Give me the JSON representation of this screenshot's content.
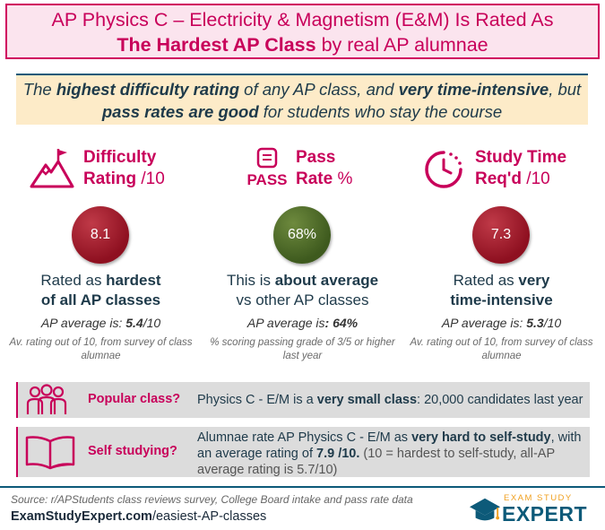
{
  "title": {
    "part1": "AP Physics C – Electricity & Magnetism (E&M) Is Rated As",
    "part2_bold": "The Hardest AP Class",
    "part2_rest": " by real AP alumnae"
  },
  "intro": {
    "t1": "The ",
    "b1": "highest difficulty rating",
    "t2": " of any AP class, and ",
    "b2": "very time-intensive",
    "t3": ", but ",
    "b3": "pass rates are good",
    "t4": " for students who stay the course"
  },
  "columns": [
    {
      "title_bold": "Difficulty",
      "title_line2_bold": "Rating",
      "title_line2_rest": " /10",
      "value": "8.1",
      "desc_pre": "Rated as ",
      "desc_bold": "hardest",
      "desc_line2_bold": "of all AP classes",
      "avg_pre": "AP average is: ",
      "avg_bold": "5.4",
      "avg_post": "/10",
      "note": "Av. rating out of 10, from survey of class alumnae"
    },
    {
      "icon_text": "PASS",
      "title_bold": "Pass",
      "title_line2_bold": "Rate",
      "title_line2_rest": " %",
      "value": "68%",
      "desc_pre": "This is ",
      "desc_bold": "about average",
      "desc_line2": "vs other AP classes",
      "avg_pre": "AP average is",
      "avg_bold": ": 64%",
      "note": "% scoring passing grade of 3/5 or higher last year"
    },
    {
      "title_bold": "Study Time",
      "title_line2_bold": "Req'd",
      "title_line2_rest": " /10",
      "value": "7.3",
      "desc_pre": "Rated as ",
      "desc_bold": "very",
      "desc_line2_bold": "time-intensive",
      "avg_pre": "AP average is: ",
      "avg_bold": "5.3",
      "avg_post": "/10",
      "note": "Av. rating out of 10, from survey of class alumnae"
    }
  ],
  "popular": {
    "label": "Popular class?",
    "t1": "Physics C - E/M is a ",
    "b1": "very small class",
    "t2": ": 20,000  candidates last year"
  },
  "self_study": {
    "label": "Self studying?",
    "t1": "Alumnae rate AP Physics C - E/M as ",
    "b1": "very hard to self-study",
    "t2": ", with an average rating of ",
    "b2": "7.9 /10.",
    "grey": " (10 = hardest to self-study, all-AP average rating is 5.7/10)"
  },
  "footer": {
    "source": "Source: r/APStudents class reviews survey, College Board intake and pass rate data",
    "url_bold": "ExamStudyExpert.com",
    "url_rest": "/easiest-AP-classes",
    "logo_top": "EXAM STUDY",
    "logo_main": "EXPERT"
  },
  "colors": {
    "accent": "#c8005a",
    "navy": "#0d5a79",
    "red_circle": "#8e1020",
    "green_circle": "#3e5a1e",
    "gold": "#f0a020"
  }
}
